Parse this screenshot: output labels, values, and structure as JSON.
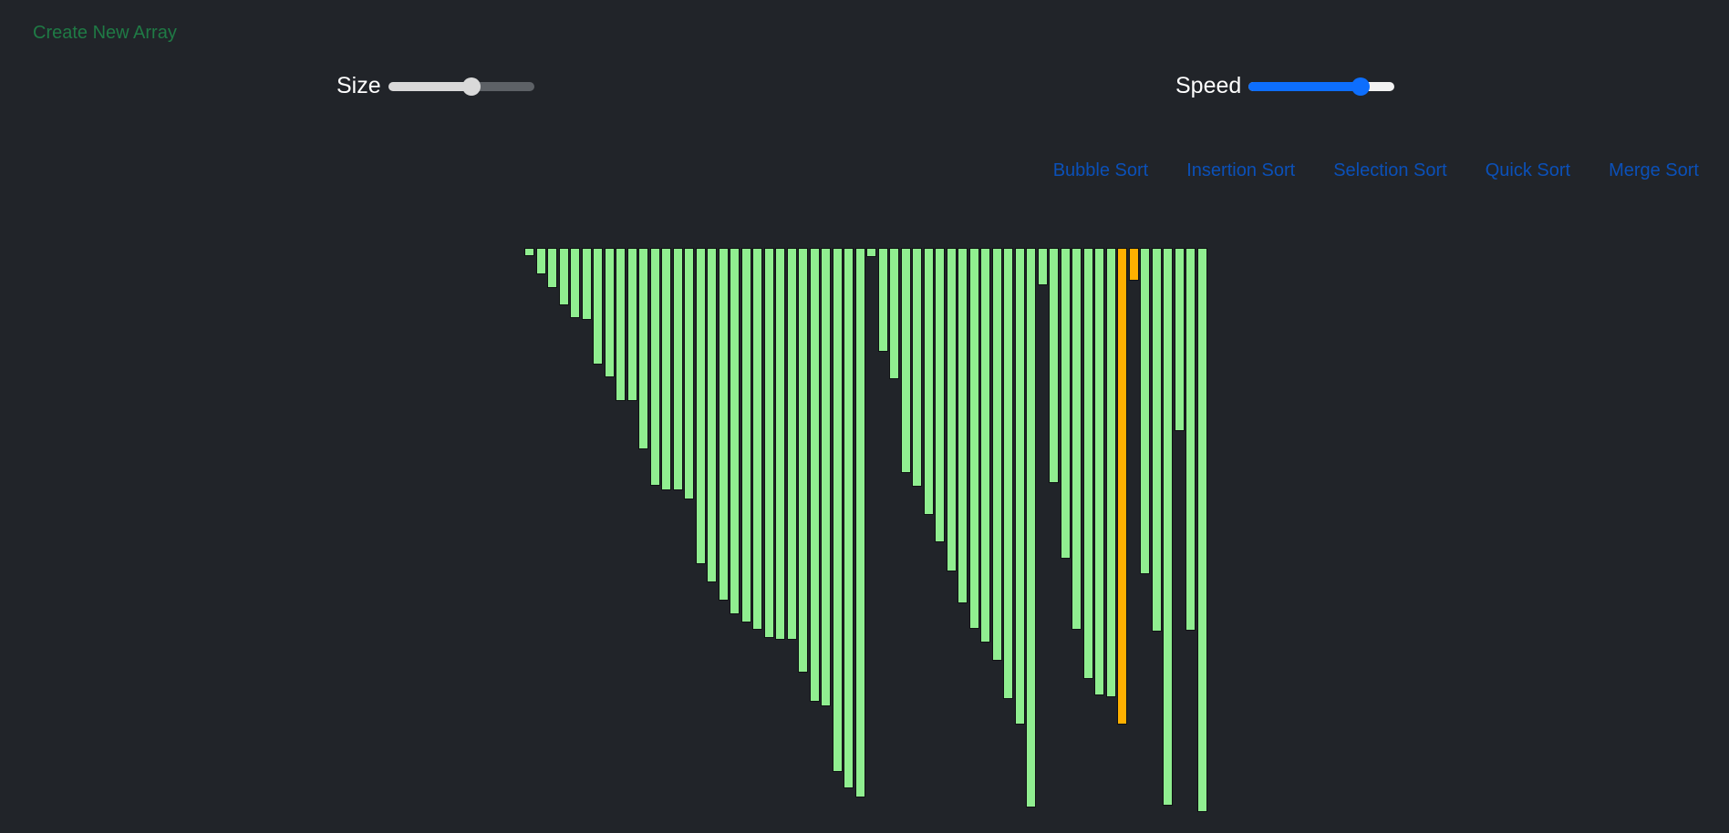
{
  "header": {
    "create_label": "Create New Array"
  },
  "controls": {
    "size_label": "Size",
    "size_value": 0.57,
    "speed_label": "Speed",
    "speed_value": 0.77
  },
  "sort_buttons": [
    "Bubble Sort",
    "Insertion Sort",
    "Selection Sort",
    "Quick Sort",
    "Merge Sort"
  ],
  "colors": {
    "bar_default": "#90ee90",
    "bar_active": "#ffb000",
    "accent_blue": "#0d6efd",
    "link_green": "#1f7a45",
    "link_blue": "#0b50b8",
    "background": "#212429"
  },
  "array": {
    "values": [
      9,
      29,
      44,
      63,
      77,
      79,
      128,
      142,
      168,
      168,
      221,
      261,
      266,
      266,
      276,
      347,
      367,
      387,
      402,
      411,
      419,
      428,
      430,
      430,
      466,
      498,
      503,
      575,
      593,
      603,
      10,
      114,
      144,
      247,
      262,
      293,
      323,
      355,
      390,
      418,
      433,
      453,
      495,
      523,
      614,
      41,
      258,
      341,
      419,
      473,
      491,
      493,
      523,
      36,
      358,
      421,
      612,
      201,
      420,
      619
    ],
    "active": [
      52,
      53
    ]
  }
}
